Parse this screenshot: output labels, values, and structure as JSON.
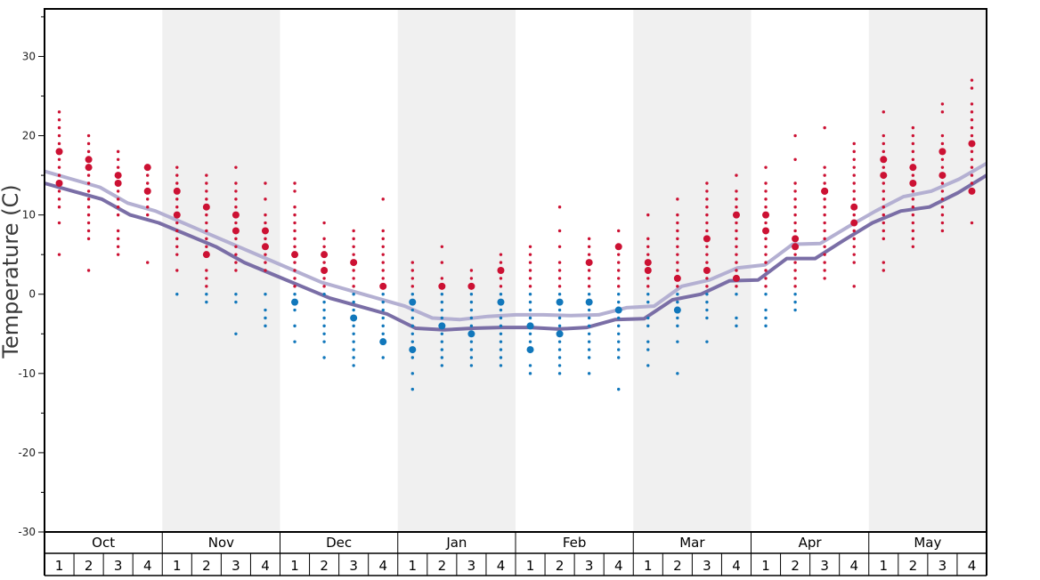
{
  "chart_data": {
    "type": "scatter",
    "ylabel": "Temperature (C)",
    "ylim": [
      -30,
      36
    ],
    "yticks": [
      -30,
      -20,
      -10,
      0,
      10,
      20,
      30
    ],
    "months": [
      "Oct",
      "Nov",
      "Dec",
      "Jan",
      "Feb",
      "Mar",
      "Apr",
      "May"
    ],
    "weeks_per_month": 4,
    "week_labels": [
      "1",
      "2",
      "3",
      "4"
    ],
    "grid": false,
    "legend": "none",
    "colors": {
      "warm": "#cc1133",
      "cold": "#1177bb",
      "upper_line": "#b4b0d2",
      "lower_line": "#7a6ea6",
      "band": "#f0f0f0"
    },
    "series": [
      {
        "values": [
          15.5,
          14.5,
          13.5,
          11.5,
          10.5,
          9.0,
          7.5,
          6.0,
          4.5,
          3.0,
          1.5,
          0.5,
          -0.5,
          -1.5,
          -3.0,
          -3.2,
          -2.8,
          -2.6,
          -2.6,
          -2.7,
          -2.6,
          -1.7,
          -1.5,
          1.0,
          1.8,
          3.3,
          3.7,
          6.3,
          6.4,
          8.5,
          10.5,
          12.3,
          13.0,
          14.5,
          16.5
        ]
      },
      {
        "values": [
          14.0,
          13.0,
          12.0,
          10.0,
          9.0,
          7.5,
          6.0,
          4.0,
          2.5,
          1.0,
          -0.5,
          -1.5,
          -2.5,
          -4.3,
          -4.5,
          -4.3,
          -4.2,
          -4.2,
          -4.4,
          -4.2,
          -3.2,
          -3.1,
          -0.7,
          0.0,
          1.7,
          1.8,
          4.5,
          4.5,
          6.8,
          9.0,
          10.5,
          11.0,
          12.8,
          15.0
        ]
      }
    ],
    "points": [
      {
        "week": 1,
        "temps": [
          23,
          22,
          21,
          20,
          19,
          18,
          17,
          16,
          15,
          14,
          13,
          12,
          11,
          9,
          5
        ],
        "big": [
          18,
          14
        ]
      },
      {
        "week": 2,
        "temps": [
          20,
          19,
          18,
          17,
          16,
          15,
          14,
          13,
          12,
          11,
          10,
          9,
          8,
          7,
          3
        ],
        "big": [
          16,
          17
        ]
      },
      {
        "week": 3,
        "temps": [
          18,
          17,
          16,
          15,
          14,
          13,
          12,
          11,
          10,
          8,
          7,
          6,
          5
        ],
        "big": [
          15,
          14
        ]
      },
      {
        "week": 4,
        "temps": [
          16,
          15,
          14,
          13,
          12,
          11,
          10,
          4
        ],
        "big": [
          13,
          16
        ]
      },
      {
        "week": 5,
        "temps": [
          16,
          15,
          14,
          13,
          12,
          11,
          10,
          9,
          8,
          7,
          6,
          5,
          3,
          0
        ],
        "big": [
          10,
          13
        ]
      },
      {
        "week": 6,
        "temps": [
          15,
          14,
          13,
          12,
          11,
          10,
          9,
          8,
          7,
          6,
          5,
          3,
          2,
          1,
          0,
          -1
        ],
        "big": [
          11,
          5
        ]
      },
      {
        "week": 7,
        "temps": [
          16,
          14,
          13,
          12,
          11,
          10,
          9,
          8,
          7,
          6,
          5,
          4,
          3,
          0,
          -1,
          -5
        ],
        "big": [
          10,
          8
        ]
      },
      {
        "week": 8,
        "temps": [
          14,
          12,
          10,
          9,
          8,
          7,
          6,
          5,
          4,
          3,
          0,
          -2,
          -3,
          -4
        ],
        "big": [
          8,
          6
        ]
      },
      {
        "week": 9,
        "temps": [
          14,
          13,
          11,
          10,
          9,
          8,
          7,
          6,
          5,
          4,
          3,
          2,
          1,
          0,
          -1,
          -2,
          -4,
          -6
        ],
        "big": [
          5,
          -1
        ]
      },
      {
        "week": 10,
        "temps": [
          9,
          7,
          6,
          5,
          4,
          3,
          2,
          1,
          0,
          -1,
          -2,
          -3,
          -4,
          -5,
          -6,
          -8
        ],
        "big": [
          5,
          3
        ]
      },
      {
        "week": 11,
        "temps": [
          8,
          7,
          6,
          5,
          4,
          3,
          2,
          1,
          0,
          -1,
          -2,
          -3,
          -4,
          -5,
          -6,
          -7,
          -8,
          -9
        ],
        "big": [
          4,
          -3
        ]
      },
      {
        "week": 12,
        "temps": [
          12,
          8,
          7,
          6,
          5,
          4,
          3,
          2,
          1,
          0,
          -1,
          -2,
          -3,
          -4,
          -5,
          -6,
          -8
        ],
        "big": [
          1,
          -6
        ]
      },
      {
        "week": 13,
        "temps": [
          4,
          3,
          2,
          1,
          0,
          -1,
          -2,
          -3,
          -4,
          -5,
          -6,
          -7,
          -8,
          -10,
          -12
        ],
        "big": [
          -1,
          -7
        ]
      },
      {
        "week": 14,
        "temps": [
          6,
          4,
          2,
          1,
          0,
          -1,
          -2,
          -3,
          -4,
          -5,
          -6,
          -7,
          -8,
          -9
        ],
        "big": [
          1,
          -4
        ]
      },
      {
        "week": 15,
        "temps": [
          3,
          2,
          1,
          0,
          -1,
          -2,
          -3,
          -4,
          -5,
          -6,
          -7,
          -8,
          -9
        ],
        "big": [
          -5,
          1
        ]
      },
      {
        "week": 16,
        "temps": [
          5,
          4,
          3,
          2,
          1,
          0,
          -1,
          -2,
          -3,
          -4,
          -5,
          -6,
          -7,
          -8,
          -9
        ],
        "big": [
          3,
          -1
        ]
      },
      {
        "week": 17,
        "temps": [
          6,
          5,
          4,
          3,
          2,
          1,
          0,
          -1,
          -2,
          -3,
          -4,
          -5,
          -6,
          -7,
          -9,
          -10
        ],
        "big": [
          -4,
          -7
        ]
      },
      {
        "week": 18,
        "temps": [
          11,
          8,
          6,
          4,
          3,
          2,
          1,
          0,
          -1,
          -2,
          -3,
          -4,
          -5,
          -6,
          -7,
          -8,
          -9,
          -10
        ],
        "big": [
          -1,
          -5
        ]
      },
      {
        "week": 19,
        "temps": [
          7,
          6,
          5,
          4,
          3,
          2,
          1,
          0,
          -1,
          -2,
          -3,
          -4,
          -5,
          -6,
          -7,
          -8,
          -10
        ],
        "big": [
          -1,
          4
        ]
      },
      {
        "week": 20,
        "temps": [
          8,
          6,
          5,
          4,
          3,
          2,
          1,
          0,
          -1,
          -2,
          -3,
          -4,
          -5,
          -6,
          -7,
          -8,
          -12
        ],
        "big": [
          -2,
          6
        ]
      },
      {
        "week": 21,
        "temps": [
          10,
          7,
          6,
          5,
          4,
          3,
          2,
          1,
          0,
          -1,
          -3,
          -4,
          -6,
          -7,
          -9
        ],
        "big": [
          4,
          3
        ]
      },
      {
        "week": 22,
        "temps": [
          12,
          10,
          9,
          8,
          7,
          6,
          5,
          4,
          3,
          2,
          1,
          0,
          -1,
          -2,
          -3,
          -4,
          -6,
          -10
        ],
        "big": [
          -2,
          2
        ]
      },
      {
        "week": 23,
        "temps": [
          14,
          13,
          12,
          11,
          10,
          9,
          8,
          7,
          6,
          5,
          4,
          3,
          2,
          1,
          0,
          -1,
          -2,
          -3,
          -6
        ],
        "big": [
          3,
          7
        ]
      },
      {
        "week": 24,
        "temps": [
          15,
          13,
          12,
          11,
          10,
          9,
          8,
          7,
          6,
          5,
          4,
          3,
          2,
          1,
          0,
          -3,
          -4
        ],
        "big": [
          2,
          10
        ]
      },
      {
        "week": 25,
        "temps": [
          16,
          14,
          13,
          12,
          11,
          10,
          9,
          8,
          7,
          6,
          5,
          4,
          3,
          2,
          1,
          0,
          -2,
          -3,
          -4
        ],
        "big": [
          8,
          10
        ]
      },
      {
        "week": 26,
        "temps": [
          20,
          17,
          14,
          13,
          12,
          11,
          10,
          9,
          8,
          7,
          6,
          5,
          4,
          3,
          2,
          1,
          0,
          -1,
          -2
        ],
        "big": [
          7,
          6
        ]
      },
      {
        "week": 27,
        "temps": [
          21,
          16,
          15,
          14,
          13,
          12,
          11,
          10,
          9,
          8,
          7,
          6,
          5,
          4,
          3,
          2
        ],
        "big": [
          13,
          13
        ]
      },
      {
        "week": 28,
        "temps": [
          19,
          18,
          17,
          16,
          15,
          14,
          13,
          12,
          11,
          10,
          9,
          8,
          7,
          6,
          5,
          4,
          1
        ],
        "big": [
          11,
          9
        ]
      },
      {
        "week": 29,
        "temps": [
          23,
          20,
          19,
          18,
          17,
          16,
          15,
          14,
          13,
          12,
          11,
          10,
          9,
          8,
          7,
          4,
          3
        ],
        "big": [
          17,
          15
        ]
      },
      {
        "week": 30,
        "temps": [
          21,
          20,
          19,
          18,
          17,
          16,
          15,
          14,
          13,
          12,
          11,
          10,
          9,
          8,
          7,
          6
        ],
        "big": [
          16,
          14
        ]
      },
      {
        "week": 31,
        "temps": [
          24,
          23,
          20,
          19,
          18,
          17,
          16,
          15,
          14,
          13,
          12,
          11,
          10,
          9,
          8
        ],
        "big": [
          15,
          18
        ]
      },
      {
        "week": 32,
        "temps": [
          27,
          26,
          24,
          23,
          22,
          21,
          20,
          19,
          18,
          17,
          16,
          15,
          14,
          13,
          9
        ],
        "big": [
          19,
          13
        ]
      }
    ]
  }
}
